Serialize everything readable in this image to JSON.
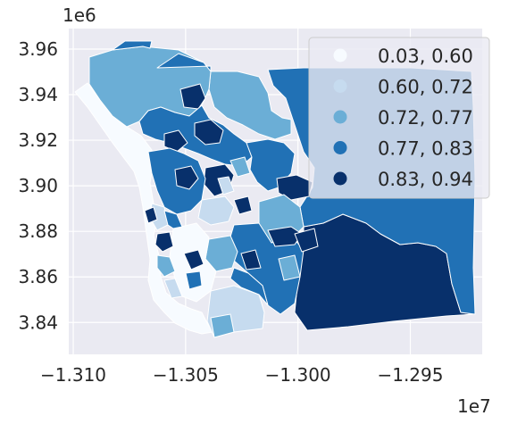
{
  "chart_data": {
    "type": "choropleth",
    "title": "",
    "x_ticks": [
      -1.31,
      -1.305,
      -1.3,
      -1.295
    ],
    "x_tick_labels": [
      "−1.310",
      "−1.305",
      "−1.300",
      "−1.295"
    ],
    "x_multiplier": "1e7",
    "xlim": [
      -13102000.0,
      -12918000.0
    ],
    "y_ticks": [
      3.84,
      3.86,
      3.88,
      3.9,
      3.92,
      3.94,
      3.96
    ],
    "y_tick_labels": [
      "3.84",
      "3.86",
      "3.88",
      "3.90",
      "3.92",
      "3.94",
      "3.96"
    ],
    "y_multiplier": "1e6",
    "ylim": [
      3826000.0,
      3969000.0
    ],
    "grid": true,
    "legend_position": "top-right",
    "classes": [
      {
        "label": "0.03, 0.60",
        "color": "#f7fbff"
      },
      {
        "label": "0.60, 0.72",
        "color": "#c6dbef"
      },
      {
        "label": "0.72, 0.77",
        "color": "#6baed6"
      },
      {
        "label": "0.77, 0.83",
        "color": "#2171b5"
      },
      {
        "label": "0.83, 0.94",
        "color": "#08306b"
      }
    ]
  }
}
